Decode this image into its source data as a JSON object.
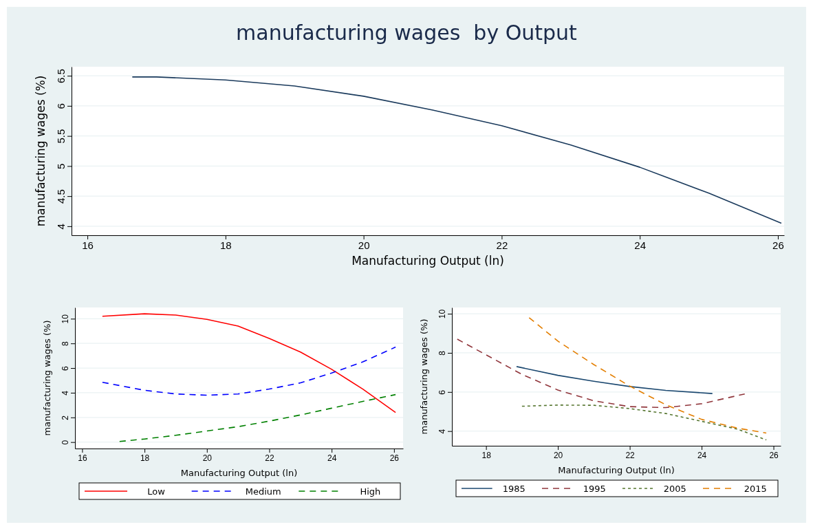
{
  "chart_data": [
    {
      "type": "line",
      "title": "manufacturing wages  by Output",
      "xlabel": "Manufacturing Output (ln)",
      "ylabel": "manufacturing wages (%)",
      "xlim": [
        15.77,
        26.09
      ],
      "ylim": [
        3.85,
        6.65
      ],
      "xticks": [
        16,
        18,
        20,
        22,
        24,
        26
      ],
      "yticks": [
        4,
        4.5,
        5,
        5.5,
        6,
        6.5
      ],
      "grid": "y",
      "legend": false,
      "series": [
        {
          "color": "#1a3a5c",
          "line_style": "solid",
          "x": [
            16.65,
            17,
            18,
            19,
            20,
            21,
            22,
            23,
            24,
            25,
            26.05
          ],
          "values": [
            6.48,
            6.48,
            6.43,
            6.33,
            6.16,
            5.93,
            5.67,
            5.35,
            4.98,
            4.55,
            4.05
          ]
        }
      ]
    },
    {
      "type": "line",
      "xlabel": "Manufacturing Output (ln)",
      "ylabel": "manufacturing wages (%)",
      "xlim": [
        15.77,
        26.29
      ],
      "ylim": [
        -0.52,
        10.91
      ],
      "xticks": [
        16,
        18,
        20,
        22,
        24,
        26
      ],
      "yticks": [
        0,
        2,
        4,
        6,
        8,
        10
      ],
      "grid": "y",
      "legend": "bottom",
      "series": [
        {
          "name": "Low",
          "color": "#ff0000",
          "line_style": "solid",
          "x": [
            16.65,
            18,
            19,
            20,
            21,
            22,
            23,
            24,
            25,
            26.05
          ],
          "values": [
            10.2,
            10.4,
            10.3,
            9.95,
            9.4,
            8.4,
            7.3,
            5.9,
            4.3,
            2.4
          ]
        },
        {
          "name": "Medium",
          "color": "#0000ff",
          "line_style": "dashed",
          "x": [
            16.65,
            18,
            19,
            20,
            21,
            22,
            23,
            24,
            25,
            26.05
          ],
          "values": [
            4.85,
            4.2,
            3.9,
            3.8,
            3.9,
            4.3,
            4.8,
            5.6,
            6.5,
            7.7
          ]
        },
        {
          "name": "High",
          "color": "#008000",
          "line_style": "dashed",
          "x": [
            17.2,
            18,
            19,
            20,
            21,
            22,
            23,
            24,
            25,
            26.05
          ],
          "values": [
            0.05,
            0.25,
            0.55,
            0.9,
            1.25,
            1.7,
            2.2,
            2.75,
            3.3,
            3.85
          ]
        }
      ]
    },
    {
      "type": "line",
      "xlabel": "Manufacturing Output (ln)",
      "ylabel": "manufacturing wages (%)",
      "xlim": [
        17.05,
        26.2
      ],
      "ylim": [
        3.25,
        10.32
      ],
      "xticks": [
        18,
        20,
        22,
        24,
        26
      ],
      "yticks": [
        4,
        6,
        8,
        10
      ],
      "grid": "y",
      "legend": "bottom",
      "series": [
        {
          "name": "1985",
          "color": "#1a476f",
          "line_style": "solid",
          "x": [
            18.85,
            20,
            21,
            22,
            23,
            24.3
          ],
          "values": [
            7.3,
            6.85,
            6.55,
            6.28,
            6.08,
            5.92
          ]
        },
        {
          "name": "1995",
          "color": "#90353b",
          "line_style": "dashed",
          "x": [
            17.2,
            18,
            19,
            20,
            21,
            22,
            23,
            24,
            25.2
          ],
          "values": [
            8.7,
            7.9,
            6.9,
            6.1,
            5.55,
            5.25,
            5.2,
            5.4,
            5.9
          ]
        },
        {
          "name": "2005",
          "color": "#55752f",
          "line_style": "dotted",
          "x": [
            19,
            20,
            21,
            22,
            23,
            24,
            25,
            25.8
          ],
          "values": [
            5.27,
            5.33,
            5.32,
            5.15,
            4.9,
            4.5,
            4.1,
            3.55
          ]
        },
        {
          "name": "2015",
          "color": "#e37e00",
          "line_style": "dashed",
          "x": [
            19.2,
            20,
            21,
            22,
            23,
            24,
            25,
            25.8
          ],
          "values": [
            9.8,
            8.6,
            7.4,
            6.3,
            5.35,
            4.6,
            4.15,
            3.9
          ]
        }
      ]
    }
  ]
}
